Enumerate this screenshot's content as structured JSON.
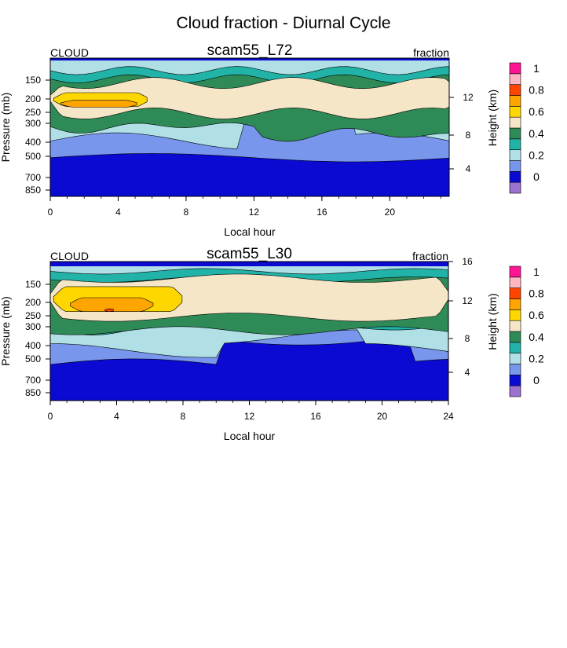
{
  "title": "Cloud fraction - Diurnal Cycle",
  "colorbar": {
    "label": "Height (km)",
    "levels": [
      {
        "value": "",
        "color": "#9b72cf"
      },
      {
        "value": "0",
        "color": "#0a0ad2"
      },
      {
        "value": "",
        "color": "#7896ec"
      },
      {
        "value": "0.2",
        "color": "#b0dfe6"
      },
      {
        "value": "",
        "color": "#21b3a8"
      },
      {
        "value": "0.4",
        "color": "#2e8b57"
      },
      {
        "value": "",
        "color": "#f5e6c8"
      },
      {
        "value": "0.6",
        "color": "#ffd700"
      },
      {
        "value": "",
        "color": "#ffa500"
      },
      {
        "value": "0.8",
        "color": "#ff4500"
      },
      {
        "value": "",
        "color": "#ffb6c1"
      },
      {
        "value": "1",
        "color": "#ff1493"
      }
    ]
  },
  "chart_data": [
    {
      "type": "heatmap",
      "name": "scam55_L72",
      "title": "scam55_L72",
      "left_label": "CLOUD",
      "right_label": "fraction",
      "xlabel": "Local hour",
      "ylabel": "Pressure (mb)",
      "y2label": "Height (km)",
      "xlim": [
        0,
        24
      ],
      "xticks": [
        "0",
        "4",
        "8",
        "12",
        "16",
        "20"
      ],
      "yticks": [
        "150",
        "200",
        "250",
        "300",
        "400",
        "500",
        "700",
        "850"
      ],
      "y2ticks": [
        "12",
        "8",
        "4"
      ],
      "layers": [
        {
          "color": "#0a0ad2"
        },
        {
          "color": "#7896ec"
        },
        {
          "color": "#b0dfe6"
        },
        {
          "color": "#21b3a8"
        },
        {
          "color": "#2e8b57"
        },
        {
          "color": "#f5e6c8"
        },
        {
          "color": "#ffd700"
        },
        {
          "color": "#ffa500"
        }
      ]
    },
    {
      "type": "heatmap",
      "name": "scam55_L30",
      "title": "scam55_L30",
      "left_label": "CLOUD",
      "right_label": "fraction",
      "xlabel": "Local hour",
      "ylabel": "Pressure (mb)",
      "y2label": "Height (km)",
      "xlim": [
        0,
        24
      ],
      "xticks": [
        "0",
        "4",
        "8",
        "12",
        "16",
        "20",
        "24"
      ],
      "yticks": [
        "150",
        "200",
        "250",
        "300",
        "400",
        "500",
        "700",
        "850"
      ],
      "y2ticks": [
        "16",
        "12",
        "8",
        "4"
      ],
      "layers": [
        {
          "color": "#0a0ad2"
        },
        {
          "color": "#7896ec"
        },
        {
          "color": "#b0dfe6"
        },
        {
          "color": "#21b3a8"
        },
        {
          "color": "#2e8b57"
        },
        {
          "color": "#f5e6c8"
        },
        {
          "color": "#ffd700"
        },
        {
          "color": "#ffa500"
        },
        {
          "color": "#ff4500"
        }
      ]
    }
  ]
}
